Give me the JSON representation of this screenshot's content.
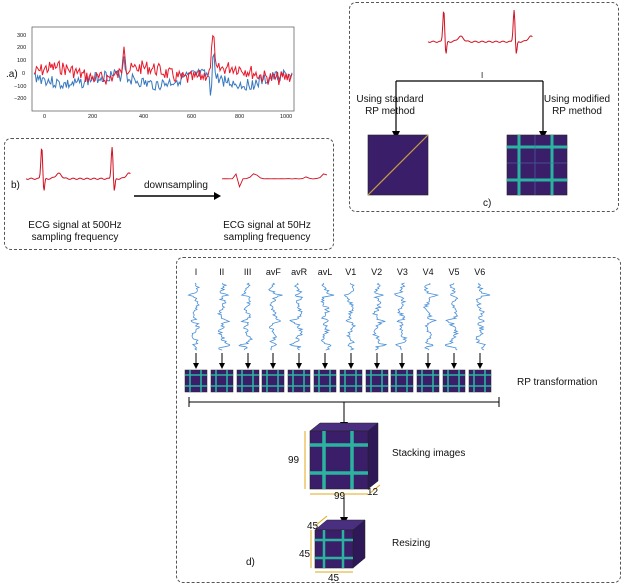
{
  "panel_a": {
    "label": ".a)",
    "x_ticks": [
      "0",
      "200",
      "400",
      "600",
      "800",
      "1000"
    ],
    "y_ticks": [
      "300",
      "200",
      "100",
      "0",
      "−100",
      "−200"
    ],
    "colors": {
      "signal_1": "#e8182a",
      "signal_2": "#3778bf"
    }
  },
  "panel_b": {
    "label": "b)",
    "arrow_label": "downsampling",
    "left_caption_line1": "ECG signal at 500Hz",
    "left_caption_line2": "sampling frequency",
    "right_caption_line1": "ECG signal at 50Hz",
    "right_caption_line2": "sampling frequency"
  },
  "panel_c": {
    "label": "c)",
    "branch_marker": "I",
    "left_method_line1": "Using standard",
    "left_method_line2": "RP method",
    "right_method_line1": "Using modified",
    "right_method_line2": "RP method"
  },
  "panel_d": {
    "label": "d)",
    "leads": [
      "I",
      "II",
      "III",
      "avF",
      "avR",
      "avL",
      "V1",
      "V2",
      "V3",
      "V4",
      "V5",
      "V6"
    ],
    "rp_label": "RP transformation",
    "stack_label": "Stacking images",
    "stack_height": "99",
    "stack_width": "99",
    "stack_depth": "12",
    "resize_label": "Resizing",
    "resize_depth": "45",
    "resize_height": "45",
    "resize_width": "45"
  },
  "colors": {
    "ecg_red": "#c8102e",
    "lead_blue": "#4a90d9",
    "rp_dark": "#3b1f6e",
    "rp_teal": "#2bb3a0"
  }
}
